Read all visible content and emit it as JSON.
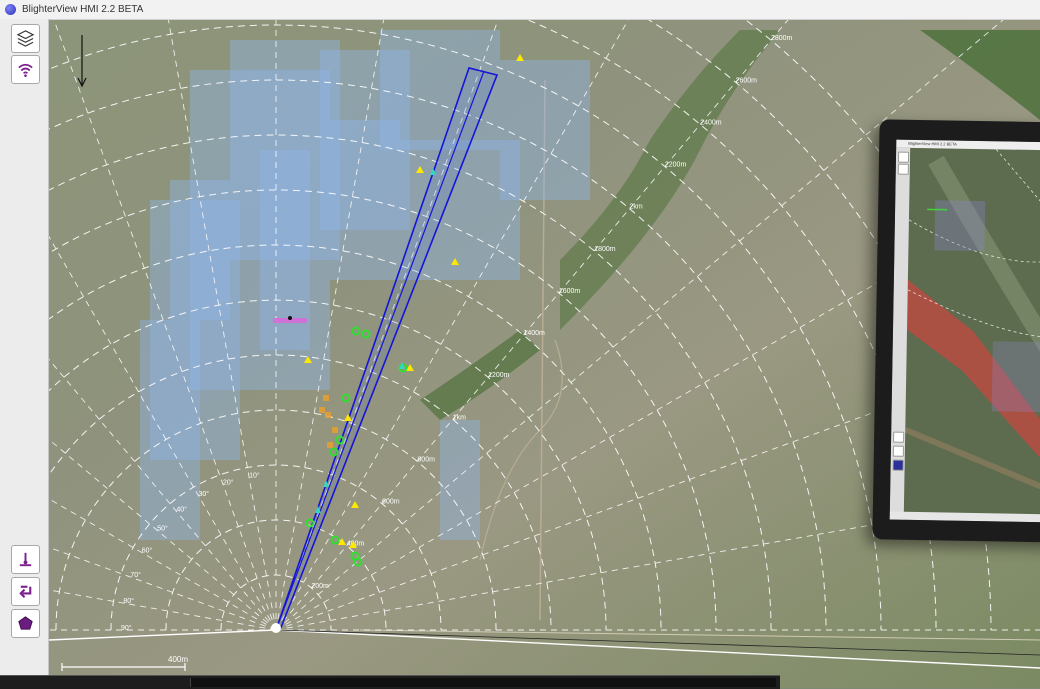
{
  "window": {
    "title": "BlighterView HMI 2.2 BETA"
  },
  "toolbar": {
    "top": [
      {
        "icon": "layers-icon"
      },
      {
        "icon": "wireless-signal-icon"
      }
    ],
    "bottom": [
      {
        "icon": "radar-mast-icon"
      },
      {
        "icon": "return-arrow-icon"
      },
      {
        "icon": "pentagon-zone-icon"
      }
    ]
  },
  "map": {
    "ranges_right": [
      "2800m",
      "2600m",
      "2400m",
      "2200m",
      "2km",
      "1800m",
      "1600m",
      "1400m",
      "1200m",
      "1km",
      "800m",
      "600m",
      "400m",
      "200m"
    ],
    "angles": [
      "10°",
      "20°",
      "30°",
      "40°",
      "50°",
      "60°",
      "70°",
      "80°",
      "90°"
    ],
    "scale_bar_label": "400m",
    "colors": {
      "beam": "#1515d8",
      "coverage": "#8fb6ea",
      "track": "#ffe800",
      "target": "#2fdf2f"
    }
  },
  "inset_monitor": {
    "title": "BlighterView HMI 2.2 BETA"
  }
}
